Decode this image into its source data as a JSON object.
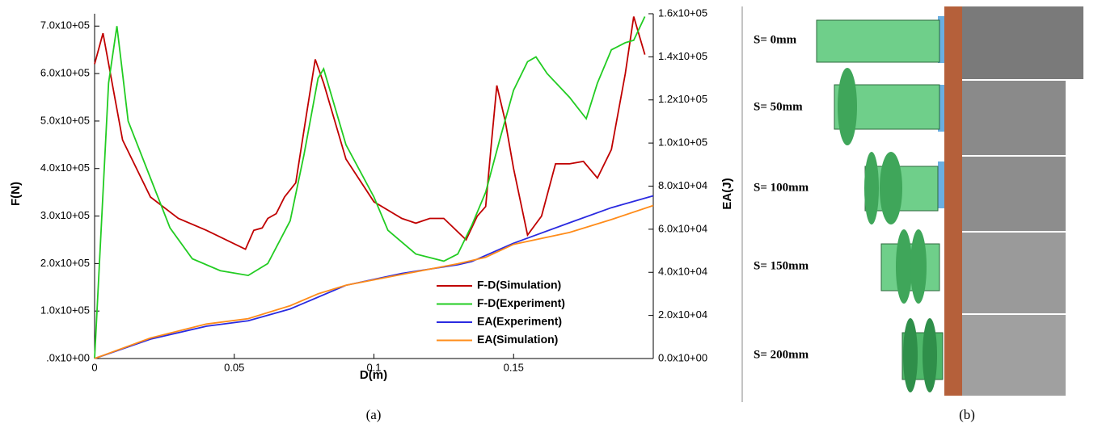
{
  "chart_data": {
    "type": "line",
    "xlabel": "D(m)",
    "ylabel": "F(N)",
    "y2label": "EA(J)",
    "caption": "(a)",
    "xlim": [
      0,
      0.2
    ],
    "xticks": [
      0,
      0.05,
      0.1,
      0.15
    ],
    "ylim": [
      0,
      726000
    ],
    "yticks": [
      {
        "value": 0,
        "label": ".0x10+00"
      },
      {
        "value": 100000,
        "label": "1.0x10+05"
      },
      {
        "value": 200000,
        "label": "2.0x10+05"
      },
      {
        "value": 300000,
        "label": "3.0x10+05"
      },
      {
        "value": 400000,
        "label": "4.0x10+05"
      },
      {
        "value": 500000,
        "label": "5.0x10+05"
      },
      {
        "value": 600000,
        "label": "6.0x10+05"
      },
      {
        "value": 700000,
        "label": "7.0x10+05"
      }
    ],
    "y2lim": [
      0,
      160000
    ],
    "y2ticks": [
      {
        "value": 0,
        "label": "0.0x10+00"
      },
      {
        "value": 20000,
        "label": "2.0x10+04"
      },
      {
        "value": 40000,
        "label": "4.0x10+04"
      },
      {
        "value": 60000,
        "label": "6.0x10+04"
      },
      {
        "value": 80000,
        "label": "8.0x10+04"
      },
      {
        "value": 100000,
        "label": "1.0x10+05"
      },
      {
        "value": 120000,
        "label": "1.2x10+05"
      },
      {
        "value": 140000,
        "label": "1.4x10+05"
      },
      {
        "value": 160000,
        "label": "1.6x10+05"
      }
    ],
    "legend": "lower right",
    "series": [
      {
        "name": "F-D(Simulation)",
        "color": "#c00000",
        "x": [
          0,
          0.003,
          0.01,
          0.02,
          0.03,
          0.04,
          0.054,
          0.057,
          0.06,
          0.062,
          0.065,
          0.068,
          0.072,
          0.076,
          0.079,
          0.082,
          0.09,
          0.1,
          0.11,
          0.115,
          0.12,
          0.125,
          0.133,
          0.137,
          0.14,
          0.142,
          0.144,
          0.147,
          0.15,
          0.155,
          0.16,
          0.165,
          0.17,
          0.175,
          0.18,
          0.185,
          0.19,
          0.193,
          0.197
        ],
        "values": [
          620000,
          685000,
          460000,
          340000,
          295000,
          270000,
          230000,
          270000,
          275000,
          295000,
          305000,
          340000,
          370000,
          520000,
          630000,
          580000,
          420000,
          330000,
          295000,
          285000,
          295000,
          295000,
          250000,
          300000,
          320000,
          450000,
          575000,
          500000,
          400000,
          260000,
          300000,
          410000,
          410000,
          415000,
          380000,
          440000,
          600000,
          720000,
          640000
        ]
      },
      {
        "name": "F-D(Experiment)",
        "color": "#22cc22",
        "x": [
          0,
          0.005,
          0.008,
          0.01,
          0.012,
          0.02,
          0.027,
          0.035,
          0.045,
          0.055,
          0.062,
          0.07,
          0.075,
          0.08,
          0.082,
          0.09,
          0.1,
          0.105,
          0.115,
          0.125,
          0.13,
          0.135,
          0.14,
          0.145,
          0.15,
          0.155,
          0.158,
          0.162,
          0.17,
          0.176,
          0.18,
          0.185,
          0.19,
          0.193,
          0.197
        ],
        "values": [
          0,
          580000,
          700000,
          600000,
          500000,
          380000,
          275000,
          210000,
          185000,
          175000,
          200000,
          290000,
          430000,
          590000,
          610000,
          450000,
          340000,
          270000,
          220000,
          205000,
          220000,
          280000,
          350000,
          460000,
          565000,
          625000,
          635000,
          600000,
          550000,
          505000,
          580000,
          650000,
          665000,
          670000,
          720000
        ]
      },
      {
        "name": "EA(Experiment)",
        "color": "#2a2ae0",
        "axis": "y2",
        "x": [
          0,
          0.02,
          0.04,
          0.055,
          0.07,
          0.09,
          0.11,
          0.13,
          0.135,
          0.15,
          0.17,
          0.185,
          0.2
        ],
        "values": [
          0,
          9000,
          15000,
          17500,
          23000,
          34000,
          39500,
          43500,
          45000,
          53500,
          63000,
          70000,
          75500
        ]
      },
      {
        "name": "EA(Simulation)",
        "color": "#ff8c1a",
        "axis": "y2",
        "x": [
          0,
          0.02,
          0.04,
          0.055,
          0.07,
          0.08,
          0.09,
          0.11,
          0.13,
          0.14,
          0.15,
          0.17,
          0.185,
          0.2
        ],
        "values": [
          0,
          9500,
          16000,
          18500,
          24500,
          30000,
          34000,
          39000,
          44000,
          47000,
          53000,
          58500,
          64500,
          71000
        ]
      }
    ]
  },
  "panel_b": {
    "caption": "(b)",
    "labels": [
      "S= 0mm",
      "S= 50mm",
      "S= 100mm",
      "S= 150mm",
      "S= 200mm"
    ]
  }
}
